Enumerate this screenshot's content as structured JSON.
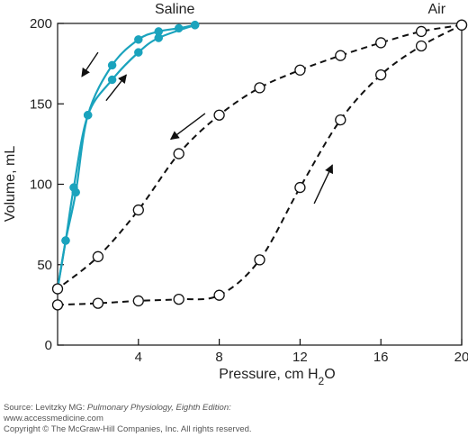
{
  "chart_data": {
    "type": "line",
    "xlabel": "Pressure, cm H2O",
    "ylabel": "Volume, mL",
    "xlim": [
      0,
      20
    ],
    "ylim": [
      0,
      200
    ],
    "x_ticks": [
      4,
      8,
      12,
      16,
      20
    ],
    "y_ticks": [
      0,
      50,
      100,
      150,
      200
    ],
    "grid": false,
    "colors": {
      "saline": "#1aa3bd",
      "air": "#111111"
    },
    "series": [
      {
        "name": "Saline",
        "segment": "inflation",
        "marker": "filled-circle",
        "line": "solid",
        "x": [
          0,
          0.4,
          0.8,
          1.5,
          2.7,
          4.0,
          5.0,
          6.8
        ],
        "y": [
          35,
          65,
          98,
          143,
          165,
          182,
          191,
          199
        ]
      },
      {
        "name": "Saline",
        "segment": "deflation",
        "marker": "filled-circle",
        "line": "solid",
        "x": [
          6.8,
          6.0,
          5.0,
          4.0,
          2.7,
          1.5,
          0.9,
          0.4,
          0
        ],
        "y": [
          199,
          197,
          195,
          190,
          174,
          143,
          95,
          65,
          35
        ]
      },
      {
        "name": "Air",
        "segment": "inflation",
        "marker": "open-circle",
        "line": "dashed",
        "x": [
          0,
          2,
          4,
          6,
          8,
          10,
          12,
          14,
          16,
          18,
          20
        ],
        "y": [
          25,
          26,
          27.5,
          28.5,
          31,
          53,
          98,
          140,
          168,
          186,
          199
        ]
      },
      {
        "name": "Air",
        "segment": "deflation",
        "marker": "open-circle",
        "line": "dashed",
        "x": [
          20,
          18,
          16,
          14,
          12,
          10,
          8,
          6,
          4,
          2,
          0
        ],
        "y": [
          199,
          195,
          188,
          180,
          171,
          160,
          143,
          119,
          84,
          55,
          35
        ]
      }
    ],
    "series_labels": [
      "Saline",
      "Air"
    ],
    "arrows": [
      {
        "series": "Saline",
        "direction": "deflation",
        "from": [
          2.0,
          182
        ],
        "to": [
          1.2,
          167
        ]
      },
      {
        "series": "Saline",
        "direction": "inflation",
        "from": [
          2.4,
          152
        ],
        "to": [
          3.4,
          168
        ]
      },
      {
        "series": "Air",
        "direction": "deflation",
        "from": [
          7.3,
          144
        ],
        "to": [
          5.6,
          128
        ]
      },
      {
        "series": "Air",
        "direction": "inflation",
        "from": [
          12.7,
          88
        ],
        "to": [
          13.6,
          112
        ]
      }
    ]
  },
  "credit": {
    "line1_prefix": "Source: Levitzky MG: ",
    "line1_italic": "Pulmonary Physiology, Eighth Edition:",
    "line2": "www.accessmedicine.com",
    "line3": "Copyright © The McGraw-Hill Companies, Inc. All rights reserved."
  }
}
